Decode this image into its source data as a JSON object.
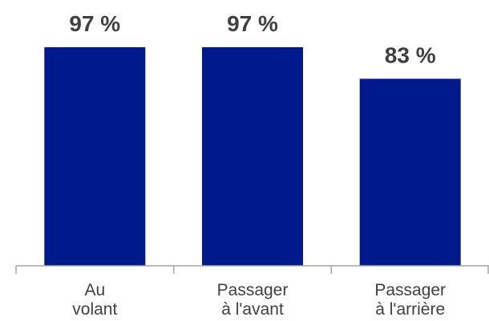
{
  "chart_data": {
    "type": "bar",
    "categories": [
      [
        "Au",
        "volant"
      ],
      [
        "Passager",
        "à l'avant"
      ],
      [
        "Passager",
        "à l'arrière"
      ]
    ],
    "values": [
      97,
      97,
      83
    ],
    "value_labels": [
      "97 %",
      "97 %",
      "83 %"
    ],
    "ylim": [
      0,
      100
    ],
    "grid": false,
    "legend": "none",
    "bar_color": "#001a8c",
    "axis_color": "#a6a6a6",
    "text_color": "#404040"
  }
}
